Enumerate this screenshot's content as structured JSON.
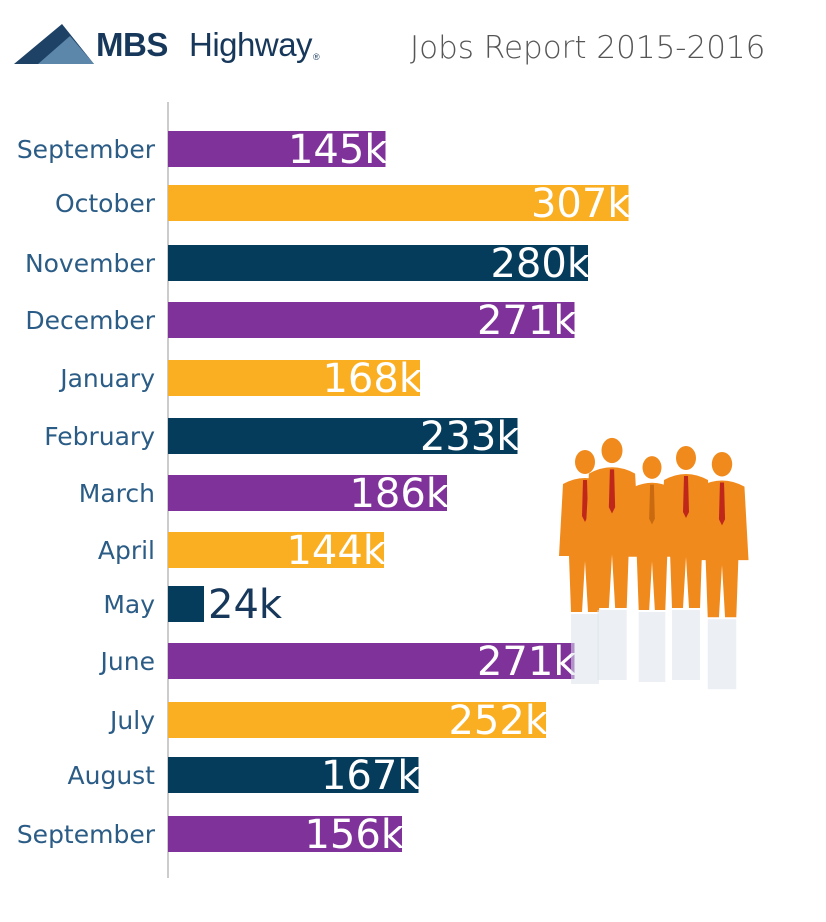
{
  "header": {
    "brand_bold": "MBS",
    "brand_light": "Highway",
    "brand_mark": "®",
    "title": "Jobs Report 2015-2016"
  },
  "colors": {
    "purple": "#7f3299",
    "orange": "#faae22",
    "navy": "#053c5c",
    "label": "#2b5c86"
  },
  "chart_data": {
    "type": "bar",
    "orientation": "horizontal",
    "title": "Jobs Report 2015-2016",
    "xlabel": "",
    "ylabel": "",
    "xlim": [
      0,
      310
    ],
    "grid": false,
    "categories": [
      "September",
      "October",
      "November",
      "December",
      "January",
      "February",
      "March",
      "April",
      "May",
      "June",
      "July",
      "August",
      "September"
    ],
    "values": [
      145,
      307,
      280,
      271,
      168,
      233,
      186,
      144,
      24,
      271,
      252,
      167,
      156
    ],
    "value_labels": [
      "145k",
      "307k",
      "280k",
      "271k",
      "168k",
      "233k",
      "186k",
      "144k",
      "24k",
      "271k",
      "252k",
      "167k",
      "156k"
    ],
    "bar_colors": [
      "purple",
      "orange",
      "navy",
      "purple",
      "orange",
      "navy",
      "purple",
      "orange",
      "navy",
      "purple",
      "orange",
      "navy",
      "purple"
    ]
  },
  "illustration": {
    "name": "business-people-silhouettes",
    "color": "#f08a1c"
  }
}
